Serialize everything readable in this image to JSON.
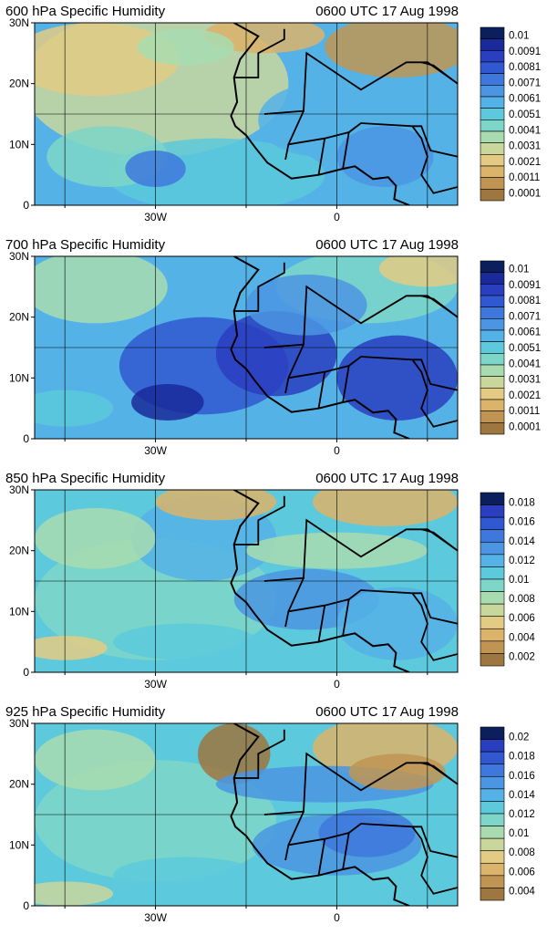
{
  "chart_data": [
    {
      "type": "heatmap",
      "title": "600 hPa Specific Humidity",
      "subtitle": "0600 UTC 17 Aug 1998",
      "x_ticks": [
        "30W",
        "0"
      ],
      "y_ticks": [
        "0",
        "10N",
        "20N",
        "30N"
      ],
      "xlim": [
        -50,
        20
      ],
      "ylim": [
        0,
        30
      ],
      "grid": true,
      "legend": "right",
      "colorbar_labels": [
        "0.01",
        "0.0091",
        "0.0081",
        "0.0071",
        "0.0061",
        "0.0051",
        "0.0041",
        "0.0031",
        "0.0021",
        "0.0011",
        "0.0001"
      ],
      "colorbar_colors": [
        "#0b1f5c",
        "#1a2a9a",
        "#2a3ec0",
        "#3058d0",
        "#3f78dc",
        "#4b95e2",
        "#55b2e6",
        "#5cc9dc",
        "#7ed6c8",
        "#a8dcb0",
        "#c9d69c",
        "#e3cb84",
        "#dbb36a",
        "#c09553",
        "#9e7640"
      ]
    },
    {
      "type": "heatmap",
      "title": "700 hPa Specific Humidity",
      "subtitle": "0600 UTC 17 Aug 1998",
      "x_ticks": [
        "30W",
        "0"
      ],
      "y_ticks": [
        "0",
        "10N",
        "20N",
        "30N"
      ],
      "xlim": [
        -50,
        20
      ],
      "ylim": [
        0,
        30
      ],
      "grid": true,
      "legend": "right",
      "colorbar_labels": [
        "0.01",
        "0.0091",
        "0.0081",
        "0.0071",
        "0.0061",
        "0.0051",
        "0.0041",
        "0.0031",
        "0.0021",
        "0.0011",
        "0.0001"
      ],
      "colorbar_colors": [
        "#0b1f5c",
        "#1a2a9a",
        "#2a3ec0",
        "#3058d0",
        "#3f78dc",
        "#4b95e2",
        "#55b2e6",
        "#5cc9dc",
        "#7ed6c8",
        "#a8dcb0",
        "#c9d69c",
        "#e3cb84",
        "#dbb36a",
        "#c09553",
        "#9e7640"
      ]
    },
    {
      "type": "heatmap",
      "title": "850 hPa Specific Humidity",
      "subtitle": "0600 UTC 17 Aug 1998",
      "x_ticks": [
        "30W",
        "0"
      ],
      "y_ticks": [
        "0",
        "10N",
        "20N",
        "30N"
      ],
      "xlim": [
        -50,
        20
      ],
      "ylim": [
        0,
        30
      ],
      "grid": true,
      "legend": "right",
      "colorbar_labels": [
        "0.018",
        "0.016",
        "0.014",
        "0.012",
        "0.01",
        "0.008",
        "0.006",
        "0.004",
        "0.002"
      ],
      "colorbar_colors": [
        "#0b1f5c",
        "#2a3ec0",
        "#3058d0",
        "#3f78dc",
        "#4b95e2",
        "#55b2e6",
        "#5cc9dc",
        "#7ed6c8",
        "#a8dcb0",
        "#c9d69c",
        "#e3cb84",
        "#dbb36a",
        "#c09553",
        "#9e7640"
      ]
    },
    {
      "type": "heatmap",
      "title": "925 hPa Specific Humidity",
      "subtitle": "0600 UTC 17 Aug 1998",
      "x_ticks": [
        "30W",
        "0"
      ],
      "y_ticks": [
        "0",
        "10N",
        "20N",
        "30N"
      ],
      "xlim": [
        -50,
        20
      ],
      "ylim": [
        0,
        30
      ],
      "grid": true,
      "legend": "right",
      "colorbar_labels": [
        "0.02",
        "0.018",
        "0.016",
        "0.014",
        "0.012",
        "0.01",
        "0.008",
        "0.006",
        "0.004"
      ],
      "colorbar_colors": [
        "#0b1f5c",
        "#2a3ec0",
        "#3058d0",
        "#3f78dc",
        "#4b95e2",
        "#55b2e6",
        "#5cc9dc",
        "#7ed6c8",
        "#a8dcb0",
        "#c9d69c",
        "#e3cb84",
        "#dbb36a",
        "#c09553",
        "#9e7640"
      ]
    }
  ]
}
